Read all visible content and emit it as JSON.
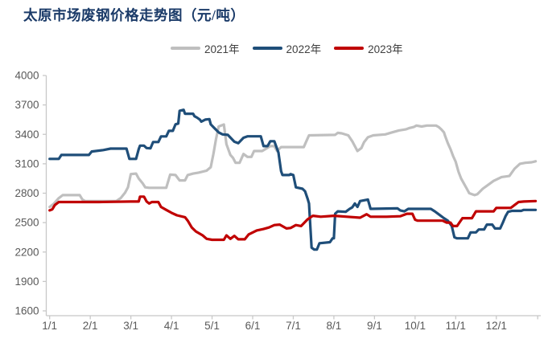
{
  "title": "太原市场废钢价格走势图（元/吨）",
  "colors": {
    "title": "#1A3A68",
    "axis_line": "#C8C8C8",
    "tick_label": "#595959",
    "series_2021": "#BFBFBF",
    "series_2022": "#1F4E79",
    "series_2023": "#C00000"
  },
  "legend": [
    {
      "label": "2021年",
      "color": "#BFBFBF"
    },
    {
      "label": "2022年",
      "color": "#1F4E79"
    },
    {
      "label": "2023年",
      "color": "#C00000"
    }
  ],
  "chart_data": {
    "type": "line",
    "title": "太原市场废钢价格走势图（元/吨）",
    "xlabel": "",
    "ylabel": "",
    "ylim": [
      1600,
      4000
    ],
    "y_ticks": [
      4000,
      3700,
      3400,
      3100,
      2800,
      2500,
      2200,
      1900,
      1600
    ],
    "x_tick_labels": [
      "1/1",
      "2/1",
      "3/1",
      "4/1",
      "5/1",
      "6/1",
      "7/1",
      "8/1",
      "9/1",
      "10/1",
      "11/1",
      "12/1"
    ],
    "x_tick_days": [
      1,
      32,
      60,
      91,
      121,
      152,
      182,
      213,
      244,
      274,
      305,
      335
    ],
    "x_unit": "day_of_year",
    "grid": false,
    "legend_position": "top",
    "series": [
      {
        "id": "2021",
        "name": "2021年",
        "color": "#BFBFBF",
        "points": [
          [
            1,
            2660
          ],
          [
            4,
            2690
          ],
          [
            8,
            2750
          ],
          [
            11,
            2780
          ],
          [
            24,
            2780
          ],
          [
            26,
            2735
          ],
          [
            28,
            2720
          ],
          [
            50,
            2720
          ],
          [
            53,
            2750
          ],
          [
            56,
            2805
          ],
          [
            58,
            2860
          ],
          [
            60,
            2995
          ],
          [
            64,
            3000
          ],
          [
            66,
            2950
          ],
          [
            69,
            2900
          ],
          [
            71,
            2860
          ],
          [
            74,
            2855
          ],
          [
            87,
            2855
          ],
          [
            90,
            2990
          ],
          [
            94,
            2985
          ],
          [
            97,
            2930
          ],
          [
            101,
            2930
          ],
          [
            103,
            2985
          ],
          [
            107,
            3000
          ],
          [
            111,
            3010
          ],
          [
            117,
            3030
          ],
          [
            120,
            3065
          ],
          [
            122,
            3200
          ],
          [
            124,
            3350
          ],
          [
            126,
            3480
          ],
          [
            130,
            3500
          ],
          [
            132,
            3300
          ],
          [
            135,
            3190
          ],
          [
            137,
            3160
          ],
          [
            139,
            3110
          ],
          [
            142,
            3110
          ],
          [
            145,
            3200
          ],
          [
            148,
            3170
          ],
          [
            151,
            3170
          ],
          [
            153,
            3230
          ],
          [
            159,
            3230
          ],
          [
            162,
            3255
          ],
          [
            165,
            3280
          ],
          [
            168,
            3280
          ],
          [
            170,
            3230
          ],
          [
            173,
            3270
          ],
          [
            190,
            3270
          ],
          [
            192,
            3330
          ],
          [
            194,
            3390
          ],
          [
            214,
            3395
          ],
          [
            216,
            3415
          ],
          [
            219,
            3410
          ],
          [
            224,
            3390
          ],
          [
            227,
            3330
          ],
          [
            231,
            3230
          ],
          [
            234,
            3260
          ],
          [
            236,
            3320
          ],
          [
            239,
            3370
          ],
          [
            243,
            3390
          ],
          [
            252,
            3400
          ],
          [
            257,
            3420
          ],
          [
            262,
            3440
          ],
          [
            267,
            3450
          ],
          [
            270,
            3465
          ],
          [
            273,
            3475
          ],
          [
            275,
            3490
          ],
          [
            279,
            3480
          ],
          [
            283,
            3490
          ],
          [
            290,
            3490
          ],
          [
            292,
            3475
          ],
          [
            294,
            3450
          ],
          [
            296,
            3420
          ],
          [
            297,
            3380
          ],
          [
            299,
            3310
          ],
          [
            301,
            3250
          ],
          [
            303,
            3180
          ],
          [
            305,
            3120
          ],
          [
            307,
            3020
          ],
          [
            309,
            2950
          ],
          [
            311,
            2900
          ],
          [
            313,
            2850
          ],
          [
            315,
            2800
          ],
          [
            317,
            2790
          ],
          [
            319,
            2780
          ],
          [
            321,
            2790
          ],
          [
            325,
            2845
          ],
          [
            329,
            2885
          ],
          [
            333,
            2925
          ],
          [
            339,
            2965
          ],
          [
            345,
            2975
          ],
          [
            349,
            3050
          ],
          [
            353,
            3100
          ],
          [
            357,
            3110
          ],
          [
            362,
            3115
          ],
          [
            365,
            3125
          ]
        ]
      },
      {
        "id": "2022",
        "name": "2022年",
        "color": "#1F4E79",
        "points": [
          [
            1,
            3150
          ],
          [
            8,
            3150
          ],
          [
            10,
            3190
          ],
          [
            31,
            3190
          ],
          [
            33,
            3225
          ],
          [
            41,
            3240
          ],
          [
            46,
            3255
          ],
          [
            57,
            3255
          ],
          [
            59,
            3150
          ],
          [
            64,
            3150
          ],
          [
            66,
            3250
          ],
          [
            67,
            3285
          ],
          [
            70,
            3285
          ],
          [
            72,
            3260
          ],
          [
            75,
            3258
          ],
          [
            77,
            3322
          ],
          [
            81,
            3322
          ],
          [
            83,
            3379
          ],
          [
            87,
            3379
          ],
          [
            89,
            3436
          ],
          [
            92,
            3436
          ],
          [
            94,
            3502
          ],
          [
            96,
            3510
          ],
          [
            97,
            3640
          ],
          [
            100,
            3650
          ],
          [
            101,
            3610
          ],
          [
            107,
            3610
          ],
          [
            108,
            3585
          ],
          [
            110,
            3570
          ],
          [
            112,
            3550
          ],
          [
            113,
            3530
          ],
          [
            116,
            3550
          ],
          [
            119,
            3555
          ],
          [
            120,
            3502
          ],
          [
            123,
            3460
          ],
          [
            126,
            3420
          ],
          [
            129,
            3400
          ],
          [
            133,
            3395
          ],
          [
            138,
            3325
          ],
          [
            141,
            3310
          ],
          [
            145,
            3365
          ],
          [
            148,
            3380
          ],
          [
            158,
            3380
          ],
          [
            160,
            3280
          ],
          [
            163,
            3280
          ],
          [
            165,
            3330
          ],
          [
            168,
            3330
          ],
          [
            171,
            3215
          ],
          [
            173,
            3025
          ],
          [
            174,
            2985
          ],
          [
            179,
            2985
          ],
          [
            180,
            2995
          ],
          [
            182,
            2985
          ],
          [
            184,
            2860
          ],
          [
            189,
            2845
          ],
          [
            191,
            2820
          ],
          [
            193,
            2740
          ],
          [
            194,
            2695
          ],
          [
            196,
            2245
          ],
          [
            198,
            2225
          ],
          [
            200,
            2225
          ],
          [
            202,
            2290
          ],
          [
            210,
            2300
          ],
          [
            212,
            2340
          ],
          [
            213,
            2340
          ],
          [
            214,
            2590
          ],
          [
            216,
            2615
          ],
          [
            222,
            2610
          ],
          [
            225,
            2640
          ],
          [
            227,
            2655
          ],
          [
            229,
            2695
          ],
          [
            231,
            2660
          ],
          [
            233,
            2720
          ],
          [
            239,
            2735
          ],
          [
            241,
            2640
          ],
          [
            261,
            2645
          ],
          [
            263,
            2625
          ],
          [
            266,
            2615
          ],
          [
            269,
            2640
          ],
          [
            286,
            2640
          ],
          [
            289,
            2615
          ],
          [
            292,
            2585
          ],
          [
            296,
            2545
          ],
          [
            299,
            2520
          ],
          [
            302,
            2465
          ],
          [
            304,
            2350
          ],
          [
            306,
            2340
          ],
          [
            314,
            2340
          ],
          [
            316,
            2400
          ],
          [
            320,
            2400
          ],
          [
            322,
            2430
          ],
          [
            326,
            2430
          ],
          [
            328,
            2480
          ],
          [
            332,
            2480
          ],
          [
            334,
            2440
          ],
          [
            338,
            2440
          ],
          [
            340,
            2500
          ],
          [
            342,
            2565
          ],
          [
            344,
            2610
          ],
          [
            347,
            2620
          ],
          [
            354,
            2620
          ],
          [
            356,
            2630
          ],
          [
            365,
            2630
          ]
        ]
      },
      {
        "id": "2023",
        "name": "2023年",
        "color": "#C00000",
        "points": [
          [
            1,
            2625
          ],
          [
            3,
            2635
          ],
          [
            5,
            2680
          ],
          [
            8,
            2710
          ],
          [
            38,
            2710
          ],
          [
            60,
            2715
          ],
          [
            66,
            2715
          ],
          [
            67,
            2765
          ],
          [
            70,
            2765
          ],
          [
            72,
            2715
          ],
          [
            74,
            2695
          ],
          [
            76,
            2710
          ],
          [
            81,
            2710
          ],
          [
            83,
            2660
          ],
          [
            87,
            2630
          ],
          [
            91,
            2600
          ],
          [
            95,
            2575
          ],
          [
            101,
            2555
          ],
          [
            103,
            2520
          ],
          [
            106,
            2450
          ],
          [
            109,
            2410
          ],
          [
            114,
            2370
          ],
          [
            117,
            2335
          ],
          [
            121,
            2325
          ],
          [
            130,
            2325
          ],
          [
            132,
            2370
          ],
          [
            135,
            2335
          ],
          [
            138,
            2365
          ],
          [
            141,
            2330
          ],
          [
            146,
            2330
          ],
          [
            149,
            2380
          ],
          [
            155,
            2420
          ],
          [
            160,
            2435
          ],
          [
            164,
            2450
          ],
          [
            168,
            2475
          ],
          [
            172,
            2480
          ],
          [
            177,
            2440
          ],
          [
            180,
            2445
          ],
          [
            184,
            2475
          ],
          [
            188,
            2465
          ],
          [
            193,
            2535
          ],
          [
            197,
            2570
          ],
          [
            203,
            2560
          ],
          [
            213,
            2570
          ],
          [
            223,
            2560
          ],
          [
            233,
            2550
          ],
          [
            238,
            2585
          ],
          [
            241,
            2560
          ],
          [
            253,
            2560
          ],
          [
            263,
            2565
          ],
          [
            268,
            2590
          ],
          [
            272,
            2590
          ],
          [
            274,
            2530
          ],
          [
            276,
            2520
          ],
          [
            295,
            2520
          ],
          [
            298,
            2500
          ],
          [
            301,
            2500
          ],
          [
            303,
            2465
          ],
          [
            306,
            2465
          ],
          [
            308,
            2505
          ],
          [
            310,
            2545
          ],
          [
            317,
            2545
          ],
          [
            320,
            2615
          ],
          [
            333,
            2615
          ],
          [
            335,
            2650
          ],
          [
            346,
            2650
          ],
          [
            349,
            2680
          ],
          [
            352,
            2710
          ],
          [
            356,
            2715
          ],
          [
            365,
            2720
          ]
        ]
      }
    ]
  }
}
